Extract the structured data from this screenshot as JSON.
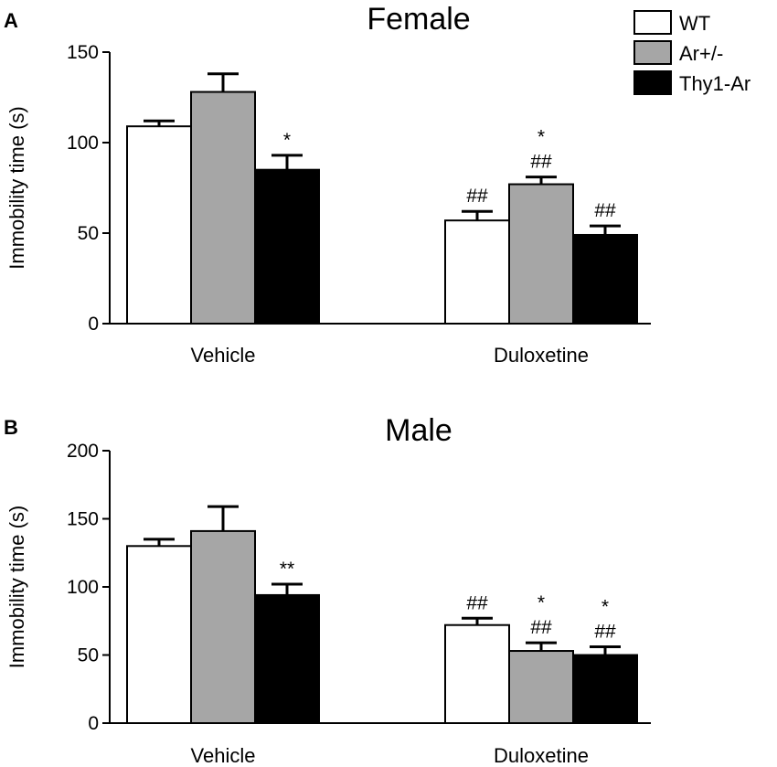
{
  "legend": [
    {
      "label": "WT",
      "color": "#ffffff"
    },
    {
      "label": "Ar+/-",
      "color": "#a6a6a6"
    },
    {
      "label": "Thy1-Ar",
      "color": "#000000"
    }
  ],
  "chart_data": [
    {
      "type": "bar",
      "panel": "A",
      "title": "Female",
      "ylabel": "Immobility time (s)",
      "xlabel": "",
      "ylim": [
        0,
        150
      ],
      "yticks": [
        0,
        50,
        100,
        150
      ],
      "categories": [
        "Vehicle",
        "Duloxetine"
      ],
      "series": [
        {
          "name": "WT",
          "values": [
            109,
            57
          ],
          "errors": [
            3,
            5
          ]
        },
        {
          "name": "Ar+/-",
          "values": [
            128,
            77
          ],
          "errors": [
            10,
            4
          ]
        },
        {
          "name": "Thy1-Ar",
          "values": [
            85,
            49
          ],
          "errors": [
            8,
            5
          ]
        }
      ],
      "annotations": [
        [
          "",
          "",
          "*"
        ],
        [
          "##",
          "*\n##",
          "##"
        ]
      ]
    },
    {
      "type": "bar",
      "panel": "B",
      "title": "Male",
      "ylabel": "Immobility time (s)",
      "xlabel": "",
      "ylim": [
        0,
        200
      ],
      "yticks": [
        0,
        50,
        100,
        150,
        200
      ],
      "categories": [
        "Vehicle",
        "Duloxetine"
      ],
      "series": [
        {
          "name": "WT",
          "values": [
            130,
            72
          ],
          "errors": [
            5,
            5
          ]
        },
        {
          "name": "Ar+/-",
          "values": [
            141,
            53
          ],
          "errors": [
            18,
            6
          ]
        },
        {
          "name": "Thy1-Ar",
          "values": [
            94,
            50
          ],
          "errors": [
            8,
            6
          ]
        }
      ],
      "annotations": [
        [
          "",
          "",
          "**"
        ],
        [
          "##",
          "*\n##",
          "*\n##"
        ]
      ]
    }
  ]
}
